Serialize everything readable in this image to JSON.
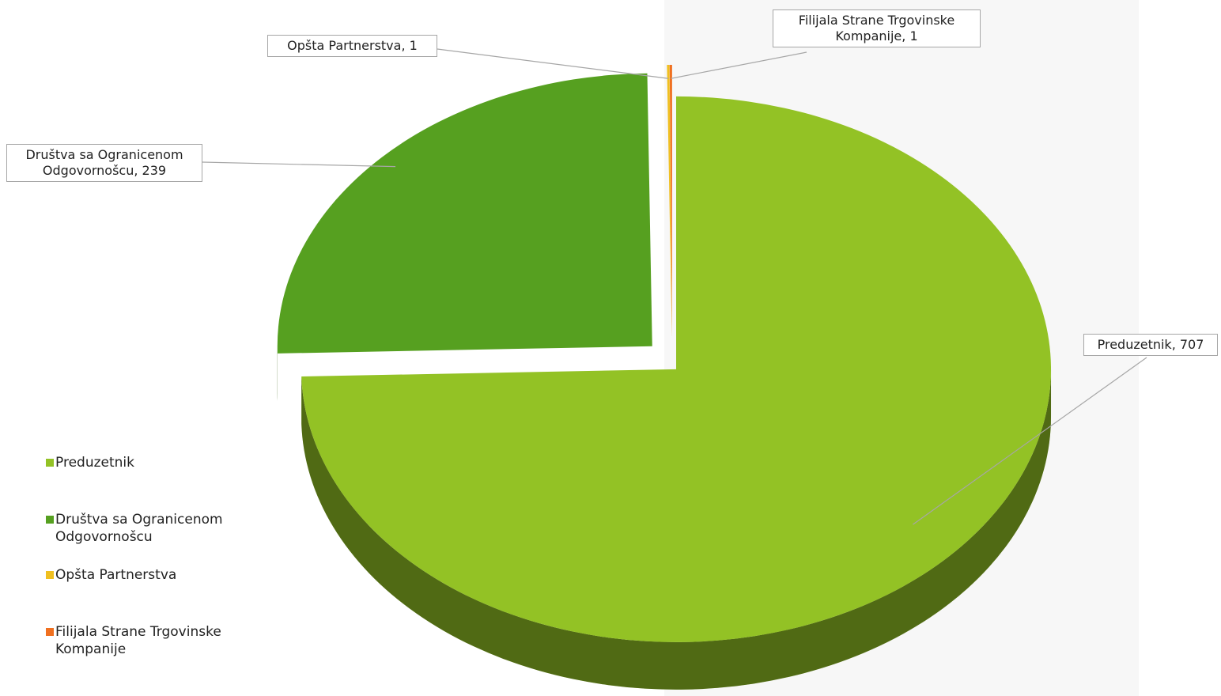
{
  "chart_data": {
    "type": "pie",
    "categories": [
      "Preduzetnik",
      "Društva sa Ogranicenom Odgovornošcu",
      "Opšta Partnerstva",
      "Filijala Strane Trgovinske Kompanije"
    ],
    "values": [
      707,
      239,
      1,
      1
    ],
    "value_labels": [
      "Preduzetnik, 707",
      "Društva sa Ogranicenom Odgovornošcu, 239",
      "Opšta Partnerstva, 1",
      "Filijala Strane Trgovinske Kompanije, 1"
    ],
    "colors": [
      "#93c225",
      "#56a020",
      "#f0c020",
      "#f07020"
    ],
    "legend": "left"
  }
}
